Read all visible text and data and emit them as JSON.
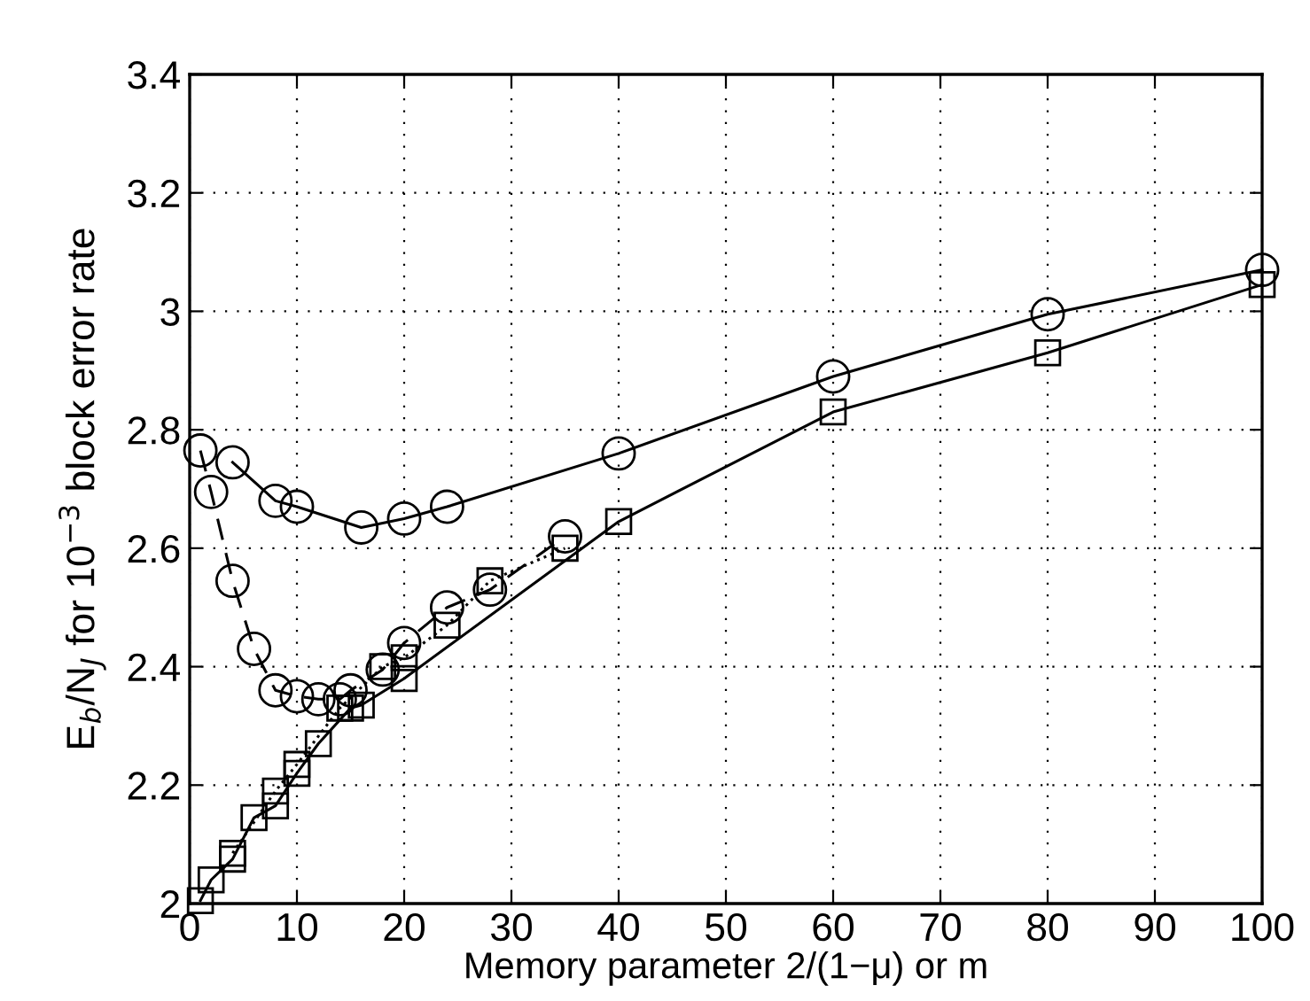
{
  "chart_data": {
    "type": "line",
    "xlabel": "Memory parameter 2/(1−μ) or m",
    "ylabel": "E$_{b}$/N$_{J}$ for 10$^{−3}$ block error rate",
    "xlim": [
      0,
      100
    ],
    "ylim": [
      2,
      3.4
    ],
    "xticks": [
      0,
      10,
      20,
      30,
      40,
      50,
      60,
      70,
      80,
      90,
      100
    ],
    "yticks": [
      2,
      2.2,
      2.4,
      2.6,
      2.8,
      3,
      3.2,
      3.4
    ],
    "grid": true,
    "legend": false,
    "series": [
      {
        "color": "#000000",
        "marker": "circle",
        "line_style": "solid",
        "x": [
          4,
          8,
          10,
          16,
          20,
          24,
          40,
          60,
          80,
          100
        ],
        "values": [
          2.745,
          2.68,
          2.67,
          2.635,
          2.65,
          2.67,
          2.76,
          2.89,
          2.995,
          3.07
        ]
      },
      {
        "color": "#000000",
        "marker": "circle",
        "line_style": "dashed",
        "x": [
          1,
          2,
          4,
          6,
          8,
          10,
          12,
          14,
          15,
          18,
          20,
          24,
          28,
          35
        ],
        "values": [
          2.765,
          2.695,
          2.545,
          2.43,
          2.36,
          2.35,
          2.345,
          2.345,
          2.36,
          2.395,
          2.44,
          2.5,
          2.53,
          2.62
        ]
      },
      {
        "color": "#000000",
        "marker": "square",
        "line_style": "solid",
        "x": [
          1,
          2,
          4,
          6,
          8,
          10,
          12,
          15,
          16,
          20,
          40,
          60,
          80,
          100
        ],
        "values": [
          2.005,
          2.04,
          2.075,
          2.145,
          2.165,
          2.22,
          2.27,
          2.33,
          2.335,
          2.38,
          2.645,
          2.83,
          2.93,
          3.045
        ]
      },
      {
        "color": "#000000",
        "marker": "square",
        "line_style": "dotted",
        "x": [
          4,
          8,
          10,
          14,
          18,
          20,
          24,
          28,
          35
        ],
        "values": [
          2.085,
          2.19,
          2.235,
          2.33,
          2.4,
          2.415,
          2.47,
          2.545,
          2.6
        ]
      }
    ]
  }
}
